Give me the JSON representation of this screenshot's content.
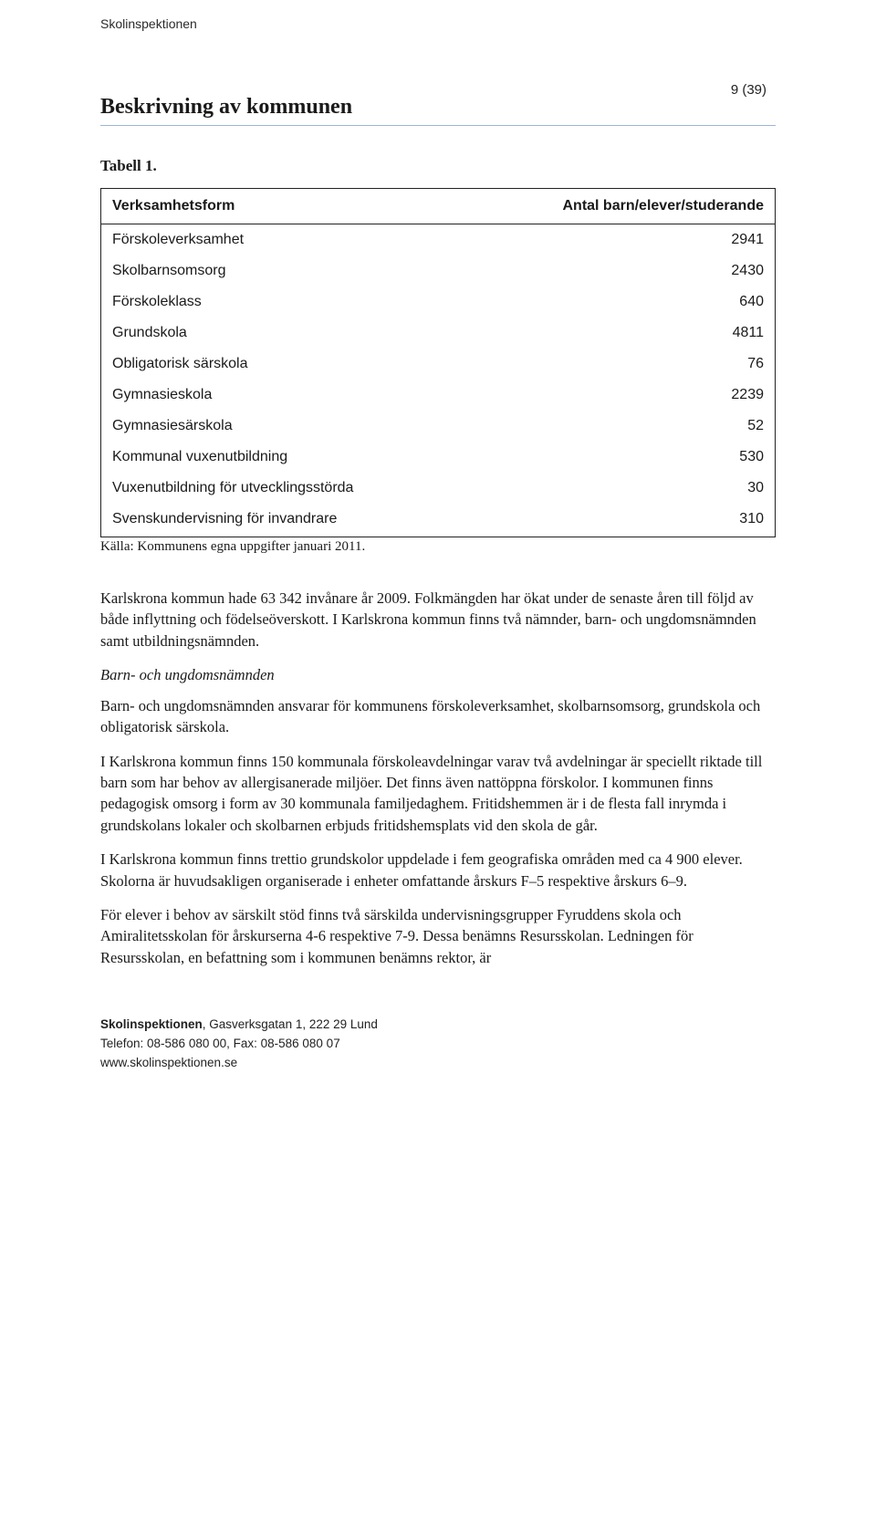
{
  "header_brand": "Skolinspektionen",
  "page_number": "9 (39)",
  "section_title": "Beskrivning av kommunen",
  "table": {
    "caption": "Tabell 1.",
    "col1_header": "Verksamhetsform",
    "col2_header": "Antal barn/elever/studerande",
    "rows": [
      {
        "label": "Förskoleverksamhet",
        "value": "2941"
      },
      {
        "label": "Skolbarnsomsorg",
        "value": "2430"
      },
      {
        "label": "Förskoleklass",
        "value": "640"
      },
      {
        "label": "Grundskola",
        "value": "4811"
      },
      {
        "label": "Obligatorisk särskola",
        "value": "76"
      },
      {
        "label": "Gymnasieskola",
        "value": "2239"
      },
      {
        "label": "Gymnasiesärskola",
        "value": "52"
      },
      {
        "label": "Kommunal vuxenutbildning",
        "value": "530"
      },
      {
        "label": "Vuxenutbildning för utvecklingsstörda",
        "value": "30"
      },
      {
        "label": "Svenskundervisning för invandrare",
        "value": "310"
      }
    ],
    "source": "Källa: Kommunens egna uppgifter januari 2011."
  },
  "paragraphs": {
    "p1": "Karlskrona kommun hade 63 342 invånare år 2009. Folkmängden har ökat under de senaste åren till följd av både inflyttning och födelseöverskott. I Karlskrona kommun finns två nämnder, barn- och ungdomsnämnden samt utbildningsnämnden.",
    "p2_italic": "Barn- och ungdomsnämnden",
    "p3": "Barn- och ungdomsnämnden ansvarar för kommunens förskoleverksamhet, skolbarnsomsorg, grundskola och obligatorisk särskola.",
    "p4": "I Karlskrona kommun finns 150 kommunala förskoleavdelningar varav två avdelningar är speciellt riktade till barn som har behov av allergisanerade miljöer. Det finns även nattöppna förskolor. I kommunen finns pedagogisk omsorg i form av 30 kommunala familjedaghem. Fritidshemmen är i de flesta fall inrymda i grundskolans lokaler och skolbarnen erbjuds fritidshemsplats vid den skola de går.",
    "p5": "I Karlskrona kommun finns trettio grundskolor uppdelade i fem geografiska områden med ca 4 900 elever. Skolorna är huvudsakligen organiserade i enheter omfattande årskurs F–5 respektive årskurs 6–9.",
    "p6": "För elever i behov av särskilt stöd finns två särskilda undervisningsgrupper Fyruddens skola och Amiralitetsskolan för årskurserna 4-6 respektive 7-9. Dessa benämns Resursskolan. Ledningen för Resursskolan, en befattning som i kommunen benämns rektor, är"
  },
  "footer": {
    "bold": "Skolinspektionen",
    "addr": ", Gasverksgatan 1, 222 29 Lund",
    "tel": "Telefon: 08-586 080 00, Fax: 08-586 080 07",
    "web": "www.skolinspektionen.se"
  }
}
